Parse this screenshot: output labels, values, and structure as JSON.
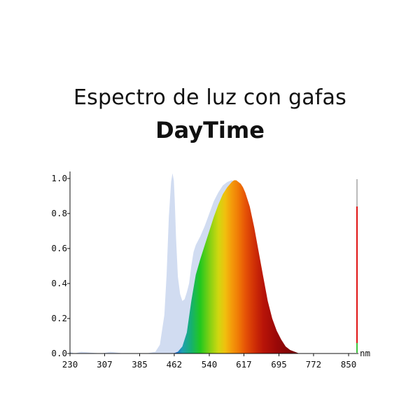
{
  "header": {
    "title": "Espectro de luz con gafas",
    "subtitle": "DayTime"
  },
  "chart_data": {
    "type": "area",
    "xlabel": "nm",
    "ylabel": "",
    "xlim": [
      230,
      862
    ],
    "ylim": [
      0,
      1.05
    ],
    "x_ticks": [
      "230",
      "307",
      "385",
      "462",
      "540",
      "617",
      "695",
      "772",
      "850"
    ],
    "y_ticks": [
      "0.0",
      "0.2",
      "0.4",
      "0.6",
      "0.8",
      "1.0"
    ],
    "grid": false,
    "series": [
      {
        "x": [
          230,
          240,
          255,
          300,
          320,
          350,
          380,
          400,
          420,
          430,
          440,
          445,
          450,
          455,
          458,
          461,
          463,
          466,
          470,
          475,
          480,
          485,
          490,
          495,
          500,
          505,
          510,
          520,
          530,
          540,
          550,
          560,
          570,
          580,
          590,
          600,
          605,
          610,
          620,
          630,
          640,
          650,
          660,
          670,
          680,
          690,
          700,
          710,
          720,
          730,
          740,
          750,
          760,
          780,
          800,
          850
        ],
        "values": [
          0.01,
          0.0,
          0.01,
          0.0,
          0.01,
          0.0,
          0.0,
          0.0,
          0.01,
          0.05,
          0.22,
          0.45,
          0.78,
          0.98,
          1.03,
          0.99,
          0.88,
          0.66,
          0.44,
          0.34,
          0.3,
          0.31,
          0.35,
          0.4,
          0.5,
          0.58,
          0.62,
          0.67,
          0.73,
          0.8,
          0.87,
          0.92,
          0.96,
          0.98,
          0.99,
          0.98,
          0.96,
          0.93,
          0.84,
          0.72,
          0.58,
          0.44,
          0.32,
          0.22,
          0.14,
          0.08,
          0.05,
          0.03,
          0.02,
          0.01,
          0.0,
          0.0,
          0.0,
          0.0,
          0.0,
          0.0
        ]
      },
      {
        "x": [
          230,
          420,
          440,
          460,
          470,
          480,
          490,
          500,
          510,
          520,
          530,
          540,
          550,
          560,
          570,
          580,
          590,
          595,
          600,
          605,
          610,
          615,
          620,
          630,
          640,
          650,
          660,
          670,
          680,
          690,
          700,
          710,
          720,
          730,
          740,
          750,
          760,
          800,
          850
        ],
        "values": [
          0.0,
          0.0,
          0.0,
          0.0,
          0.01,
          0.04,
          0.12,
          0.3,
          0.45,
          0.54,
          0.62,
          0.7,
          0.78,
          0.85,
          0.91,
          0.95,
          0.98,
          0.99,
          0.99,
          0.98,
          0.97,
          0.95,
          0.92,
          0.84,
          0.72,
          0.58,
          0.44,
          0.3,
          0.2,
          0.13,
          0.08,
          0.04,
          0.02,
          0.01,
          0.0,
          0.0,
          0.0,
          0.0,
          0.0
        ]
      }
    ]
  },
  "colors": {
    "halo": "#c9d6ee",
    "red_bar": "#e01414",
    "grey_bar": "#bbbbbb",
    "green_bar": "#3ec43e"
  }
}
